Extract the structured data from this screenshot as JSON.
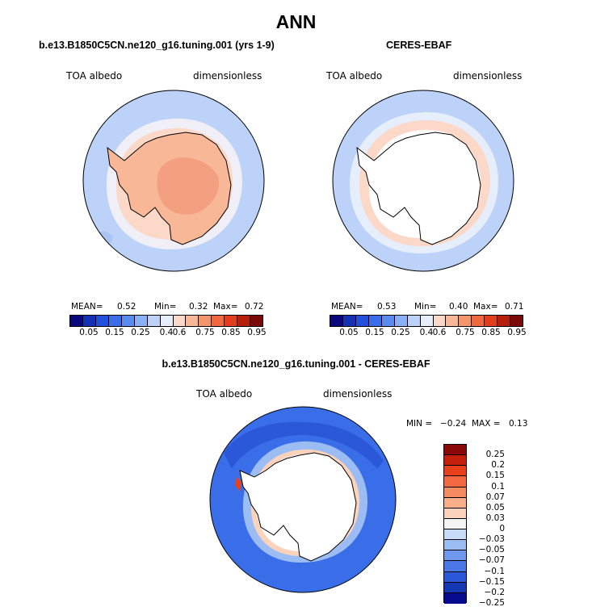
{
  "title": "ANN",
  "panels": [
    {
      "title": "b.e13.B1850C5CN.ne120_g16.tuning.001 (yrs 1-9)",
      "left_label": "TOA albedo",
      "right_label": "dimensionless",
      "mean_label": "MEAN=",
      "mean": "0.52",
      "min_label": "Min=",
      "min": "0.32",
      "max_label": "Max=",
      "max": "0.72"
    },
    {
      "title": "CERES-EBAF",
      "left_label": "TOA albedo",
      "right_label": "dimensionless",
      "mean_label": "MEAN=",
      "mean": "0.53",
      "min_label": "Min=",
      "min": "0.40",
      "max_label": "Max=",
      "max": "0.71"
    }
  ],
  "diff_panel": {
    "title": "b.e13.B1850C5CN.ne120_g16.tuning.001 - CERES-EBAF",
    "left_label": "TOA albedo",
    "right_label": "dimensionless",
    "min_label": "MIN =",
    "min": "−0.24",
    "max_label": "MAX =",
    "max": "0.13"
  },
  "colorbar_top": {
    "colors": [
      "#08087a",
      "#1433b4",
      "#2050dc",
      "#3a6ee8",
      "#5a8cf0",
      "#8ab0f5",
      "#bcd2f8",
      "#e6eefb",
      "#fbd8c8",
      "#f8b898",
      "#f4956c",
      "#f06840",
      "#e03e1c",
      "#b81e0c",
      "#7a0808"
    ],
    "labels": [
      "0.05",
      "0.15",
      "0.25",
      "0.4",
      "0.6",
      "0.75",
      "0.85",
      "0.95"
    ]
  },
  "colorbar_diff": {
    "colors": [
      "#8a0808",
      "#c41e0c",
      "#e8401a",
      "#f26840",
      "#f48c62",
      "#f8ae88",
      "#fbd2bc",
      "#f4f4f4",
      "#c8dcf8",
      "#9cbcf4",
      "#6f98ee",
      "#4a78e6",
      "#2a58d8",
      "#1438b4",
      "#060a8c"
    ],
    "labels": [
      "0.25",
      "0.2",
      "0.15",
      "0.1",
      "0.07",
      "0.05",
      "0.03",
      "0",
      "−0.03",
      "−0.05",
      "−0.07",
      "−0.1",
      "−0.15",
      "−0.2",
      "−0.25"
    ]
  },
  "chart_data": [
    {
      "type": "heatmap",
      "title": "b.e13.B1850C5CN.ne120_g16.tuning.001 (yrs 1-9)",
      "variable": "TOA albedo",
      "units": "dimensionless",
      "projection": "south polar stereographic",
      "mean": 0.52,
      "min": 0.32,
      "max": 0.72,
      "levels": [
        0.05,
        0.15,
        0.25,
        0.4,
        0.6,
        0.75,
        0.85,
        0.95
      ]
    },
    {
      "type": "heatmap",
      "title": "CERES-EBAF",
      "variable": "TOA albedo",
      "units": "dimensionless",
      "projection": "south polar stereographic",
      "mean": 0.53,
      "min": 0.4,
      "max": 0.71,
      "levels": [
        0.05,
        0.15,
        0.25,
        0.4,
        0.6,
        0.75,
        0.85,
        0.95
      ]
    },
    {
      "type": "heatmap",
      "title": "b.e13.B1850C5CN.ne120_g16.tuning.001 - CERES-EBAF",
      "variable": "TOA albedo",
      "units": "dimensionless",
      "projection": "south polar stereographic",
      "min": -0.24,
      "max": 0.13,
      "levels": [
        -0.25,
        -0.2,
        -0.15,
        -0.1,
        -0.07,
        -0.05,
        -0.03,
        0,
        0.03,
        0.05,
        0.07,
        0.1,
        0.15,
        0.2,
        0.25
      ]
    }
  ]
}
